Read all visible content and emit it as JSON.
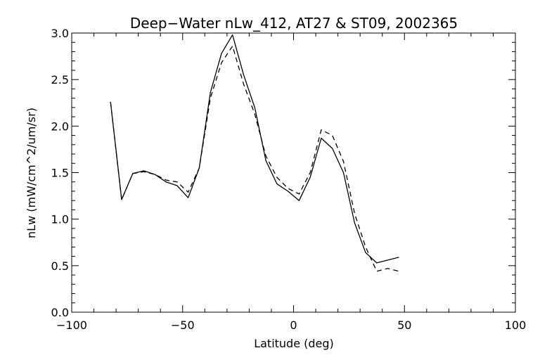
{
  "chart_data": {
    "type": "line",
    "title": "Deep−Water nLw_412, AT27 & ST09, 2002365",
    "xlabel": "Latitude (deg)",
    "ylabel": "nLw (mW/cm^2/um/sr)",
    "xlim": [
      -100,
      100
    ],
    "ylim": [
      0.0,
      3.0
    ],
    "x_ticks": [
      -100,
      -50,
      0,
      50,
      100
    ],
    "x_tick_labels": [
      "−100",
      "−50",
      "0",
      "50",
      "100"
    ],
    "y_ticks": [
      0.0,
      0.5,
      1.0,
      1.5,
      2.0,
      2.5,
      3.0
    ],
    "y_tick_labels": [
      "0.0",
      "0.5",
      "1.0",
      "1.5",
      "2.0",
      "2.5",
      "3.0"
    ],
    "grid": false,
    "colors": {
      "axes": "#000000",
      "series": "#000000",
      "background": "#ffffff"
    },
    "series": [
      {
        "style": "solid",
        "x": [
          -82.5,
          -77.5,
          -72.5,
          -67.5,
          -62.5,
          -57.5,
          -52.5,
          -47.5,
          -42.5,
          -37.5,
          -32.5,
          -27.5,
          -22.5,
          -17.5,
          -12.5,
          -7.5,
          -2.5,
          2.5,
          7.5,
          12.5,
          17.5,
          22.5,
          27.5,
          32.5,
          37.5,
          42.5,
          47.5
        ],
        "values": [
          2.26,
          1.21,
          1.49,
          1.52,
          1.48,
          1.4,
          1.36,
          1.23,
          1.55,
          2.36,
          2.78,
          2.98,
          2.55,
          2.2,
          1.63,
          1.38,
          1.3,
          1.2,
          1.45,
          1.87,
          1.76,
          1.5,
          0.96,
          0.64,
          0.53,
          0.56,
          0.59
        ]
      },
      {
        "style": "dashed",
        "x": [
          -82.5,
          -77.5,
          -72.5,
          -67.5,
          -62.5,
          -57.5,
          -52.5,
          -47.5,
          -42.5,
          -37.5,
          -32.5,
          -27.5,
          -22.5,
          -17.5,
          -12.5,
          -7.5,
          -2.5,
          2.5,
          7.5,
          12.5,
          17.5,
          22.5,
          27.5,
          32.5,
          37.5,
          42.5,
          47.5
        ],
        "values": [
          2.26,
          1.21,
          1.49,
          1.51,
          1.48,
          1.42,
          1.4,
          1.29,
          1.55,
          2.3,
          2.68,
          2.86,
          2.45,
          2.13,
          1.68,
          1.45,
          1.33,
          1.27,
          1.5,
          1.96,
          1.9,
          1.62,
          1.06,
          0.7,
          0.44,
          0.47,
          0.44
        ]
      }
    ]
  }
}
